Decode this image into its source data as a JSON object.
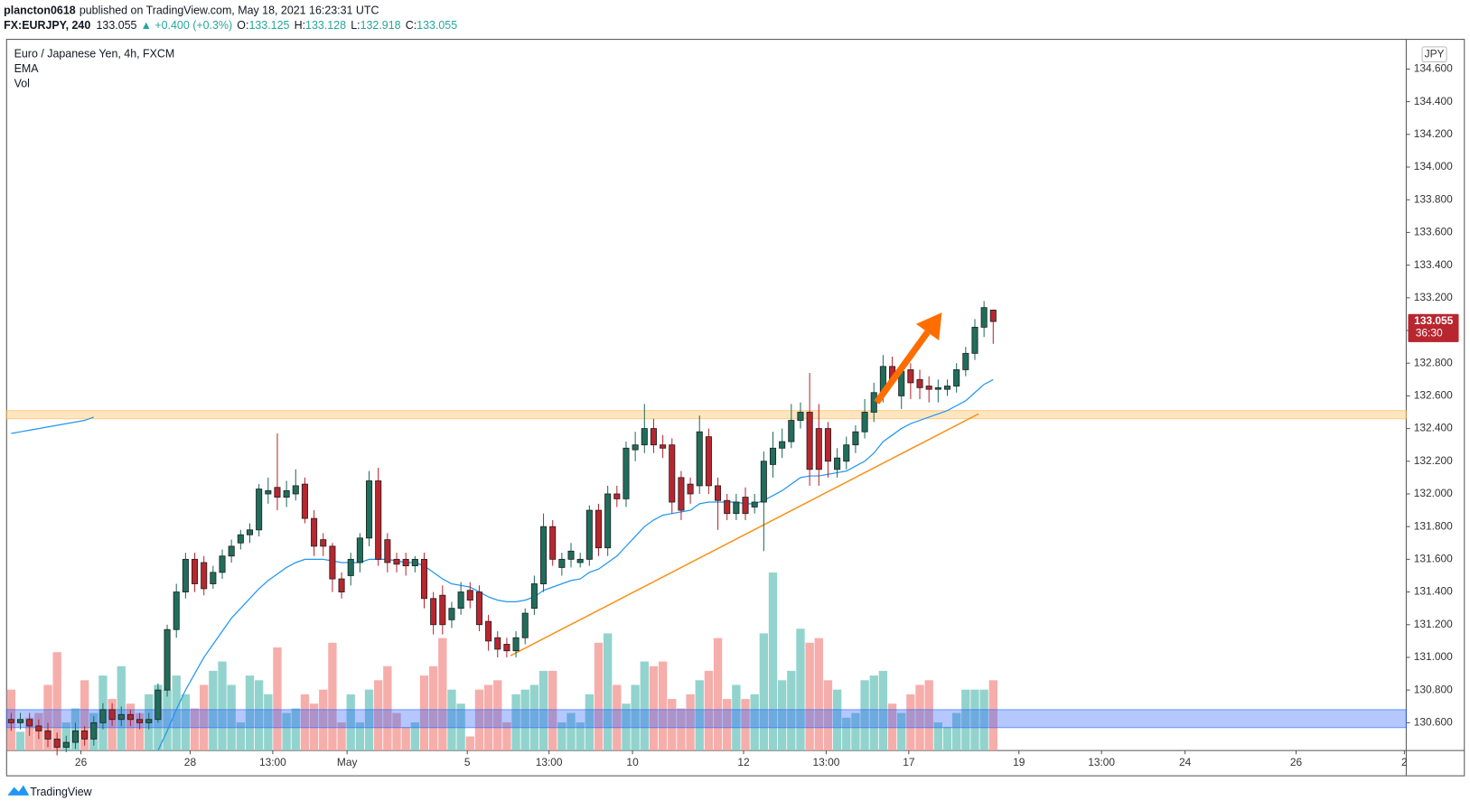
{
  "header": {
    "author": "plancton0618",
    "published": "published on TradingView.com, May 18, 2021 16:23:31 UTC",
    "symbol": "FX:EURJPY, 240",
    "last": "133.055",
    "change": "▲ +0.400 (+0.3%)",
    "ohlc": [
      {
        "label": "O:",
        "value": "133.125"
      },
      {
        "label": "H:",
        "value": "133.128"
      },
      {
        "label": "L:",
        "value": "132.918"
      },
      {
        "label": "C:",
        "value": "133.055"
      }
    ]
  },
  "chart_data": {
    "type": "candlestick",
    "title": "Euro / Japanese Yen, 4h, FXCM",
    "currency": "JPY",
    "up_color": "#1f6e5c",
    "down_color": "#b8262f",
    "volume_up_color": "#80cbc4",
    "volume_down_color": "#f4a09c",
    "open": [
      130.62,
      130.6,
      130.62,
      130.58,
      130.55,
      130.5,
      130.45,
      130.48,
      130.55,
      130.5,
      130.6,
      130.68,
      130.62,
      130.65,
      130.62,
      130.6,
      130.62,
      130.8,
      131.17,
      131.4,
      131.6,
      131.58,
      131.45,
      131.52,
      131.62,
      131.7,
      131.75,
      131.78,
      132.0,
      132.04,
      131.98,
      132.0,
      132.06,
      131.85,
      131.72,
      131.68,
      131.48,
      131.5,
      131.58,
      131.73,
      132.08,
      131.72,
      131.6,
      131.6,
      131.56,
      131.6,
      131.36,
      131.38,
      131.23,
      131.3,
      131.41,
      131.4,
      131.22,
      131.12,
      131.08,
      131.04,
      131.12,
      131.3,
      131.45,
      131.8,
      131.55,
      131.6,
      131.58,
      131.6,
      131.9,
      131.67,
      132.0,
      131.97,
      132.27,
      132.3,
      132.4,
      132.3,
      132.3,
      132.1,
      132.06,
      132.05,
      132.35,
      132.05,
      131.96,
      131.88,
      131.98,
      131.92,
      131.95,
      132.18,
      132.28,
      132.32,
      132.45,
      132.5,
      132.4,
      132.4,
      132.15,
      132.2,
      132.3,
      132.38,
      132.5,
      132.62,
      132.78,
      132.6,
      132.76,
      132.7,
      132.66,
      132.64,
      132.64,
      132.66,
      132.76,
      132.86,
      133.02,
      133.125
    ],
    "high": [
      130.66,
      130.66,
      130.66,
      130.62,
      130.6,
      130.54,
      130.52,
      130.6,
      130.58,
      130.64,
      130.72,
      130.72,
      130.7,
      130.68,
      130.66,
      130.66,
      130.84,
      131.2,
      131.45,
      131.64,
      131.64,
      131.62,
      131.56,
      131.66,
      131.72,
      131.78,
      131.82,
      132.06,
      132.1,
      132.37,
      132.08,
      132.15,
      132.1,
      131.9,
      131.76,
      131.7,
      131.52,
      131.64,
      131.76,
      132.14,
      132.16,
      131.76,
      131.64,
      131.64,
      131.62,
      131.64,
      131.4,
      131.44,
      131.34,
      131.46,
      131.46,
      131.44,
      131.26,
      131.16,
      131.12,
      131.16,
      131.3,
      131.5,
      131.88,
      131.84,
      131.64,
      131.7,
      131.64,
      131.93,
      131.94,
      132.05,
      132.05,
      132.32,
      132.38,
      132.55,
      132.46,
      132.36,
      132.34,
      132.14,
      132.1,
      132.48,
      132.4,
      132.1,
      132.0,
      132.0,
      132.04,
      132.0,
      132.26,
      132.38,
      132.4,
      132.55,
      132.56,
      132.74,
      132.55,
      132.44,
      132.28,
      132.35,
      132.42,
      132.58,
      132.68,
      132.85,
      132.84,
      132.8,
      132.8,
      132.76,
      132.72,
      132.7,
      132.7,
      132.8,
      132.9,
      133.07,
      133.18,
      133.128
    ],
    "low": [
      130.55,
      130.56,
      130.52,
      130.5,
      130.45,
      130.4,
      130.42,
      130.44,
      130.46,
      130.46,
      130.56,
      130.58,
      130.58,
      130.58,
      130.56,
      130.56,
      130.6,
      130.76,
      131.12,
      131.36,
      131.4,
      131.38,
      131.42,
      131.48,
      131.58,
      131.66,
      131.7,
      131.74,
      131.94,
      131.9,
      131.92,
      131.96,
      131.82,
      131.62,
      131.62,
      131.4,
      131.36,
      131.44,
      131.52,
      131.68,
      131.56,
      131.52,
      131.52,
      131.5,
      131.52,
      131.3,
      131.14,
      131.14,
      131.18,
      131.26,
      131.3,
      131.16,
      131.04,
      131.0,
      131.0,
      131.0,
      131.08,
      131.26,
      131.4,
      131.56,
      131.5,
      131.55,
      131.55,
      131.56,
      131.62,
      131.62,
      131.92,
      131.92,
      132.2,
      132.25,
      132.25,
      132.22,
      131.88,
      131.84,
      131.94,
      132.0,
      132.0,
      131.78,
      131.84,
      131.84,
      131.84,
      131.88,
      131.65,
      132.1,
      132.22,
      132.28,
      132.4,
      132.05,
      132.05,
      132.1,
      132.1,
      132.15,
      132.25,
      132.34,
      132.44,
      132.56,
      132.66,
      132.52,
      132.58,
      132.58,
      132.56,
      132.56,
      132.6,
      132.62,
      132.72,
      132.82,
      132.96,
      132.918
    ],
    "close": [
      130.6,
      130.62,
      130.58,
      130.55,
      130.5,
      130.45,
      130.48,
      130.55,
      130.5,
      130.6,
      130.68,
      130.62,
      130.65,
      130.62,
      130.6,
      130.62,
      130.8,
      131.17,
      131.4,
      131.6,
      131.45,
      131.42,
      131.52,
      131.62,
      131.68,
      131.75,
      131.78,
      132.03,
      132.02,
      131.98,
      132.02,
      132.05,
      131.85,
      131.68,
      131.68,
      131.48,
      131.4,
      131.6,
      131.73,
      132.08,
      131.6,
      131.58,
      131.57,
      131.56,
      131.6,
      131.36,
      131.2,
      131.2,
      131.3,
      131.4,
      131.35,
      131.2,
      131.1,
      131.05,
      131.04,
      131.12,
      131.27,
      131.45,
      131.8,
      131.6,
      131.6,
      131.65,
      131.6,
      131.9,
      131.67,
      132.0,
      131.97,
      132.28,
      132.3,
      132.4,
      132.3,
      132.28,
      131.95,
      131.9,
      132.0,
      132.38,
      132.05,
      131.96,
      131.88,
      131.95,
      131.88,
      131.95,
      132.2,
      132.28,
      132.32,
      132.45,
      132.5,
      132.15,
      132.15,
      132.2,
      132.22,
      132.3,
      132.38,
      132.5,
      132.62,
      132.78,
      132.7,
      132.75,
      132.68,
      132.65,
      132.64,
      132.65,
      132.66,
      132.76,
      132.86,
      133.02,
      133.14,
      133.055
    ],
    "series": [
      {
        "name": "EMA",
        "color": "#2196f3",
        "values": [
          132.37,
          132.38,
          132.39,
          132.4,
          132.41,
          132.42,
          132.43,
          132.44,
          132.45,
          132.47,
          null,
          null,
          null,
          null,
          null,
          null,
          130.43,
          130.55,
          130.68,
          130.8,
          130.9,
          131.0,
          131.08,
          131.16,
          131.24,
          131.3,
          131.36,
          131.42,
          131.47,
          131.51,
          131.55,
          131.58,
          131.6,
          131.6,
          131.6,
          131.59,
          131.58,
          131.58,
          131.58,
          131.6,
          131.6,
          131.6,
          131.59,
          131.58,
          131.58,
          131.56,
          131.52,
          131.48,
          131.45,
          131.44,
          131.43,
          131.4,
          131.37,
          131.35,
          131.34,
          131.34,
          131.35,
          131.37,
          131.41,
          131.43,
          131.45,
          131.47,
          131.48,
          131.52,
          131.54,
          131.58,
          131.62,
          131.68,
          131.74,
          131.8,
          131.84,
          131.87,
          131.88,
          131.89,
          131.9,
          131.94,
          131.95,
          131.95,
          131.95,
          131.95,
          131.94,
          131.94,
          131.96,
          131.99,
          132.02,
          132.06,
          132.1,
          132.11,
          132.11,
          132.12,
          132.13,
          132.14,
          132.17,
          132.2,
          132.25,
          132.32,
          132.36,
          132.4,
          132.43,
          132.45,
          132.47,
          132.49,
          132.51,
          132.54,
          132.57,
          132.62,
          132.67,
          132.7
        ]
      },
      {
        "name": "Vol",
        "values": [
          65,
          20,
          35,
          40,
          70,
          105,
          30,
          45,
          75,
          40,
          80,
          55,
          90,
          50,
          40,
          60,
          70,
          65,
          80,
          60,
          45,
          70,
          85,
          95,
          70,
          30,
          80,
          75,
          60,
          110,
          40,
          45,
          60,
          50,
          65,
          115,
          30,
          60,
          30,
          65,
          75,
          90,
          40,
          25,
          30,
          80,
          90,
          120,
          65,
          50,
          15,
          65,
          70,
          75,
          30,
          60,
          65,
          70,
          85,
          85,
          30,
          40,
          30,
          60,
          115,
          125,
          70,
          50,
          70,
          95,
          90,
          95,
          55,
          45,
          60,
          75,
          85,
          120,
          55,
          70,
          55,
          60,
          125,
          190,
          75,
          85,
          130,
          115,
          120,
          75,
          65,
          35,
          40,
          75,
          80,
          85,
          50,
          40,
          60,
          70,
          75,
          30,
          25,
          40,
          65,
          65,
          65,
          75
        ]
      }
    ],
    "volume_lim": [
      0,
      757
    ],
    "ylim": [
      130.43,
      134.77
    ],
    "yticks": [
      {
        "value": 130.6,
        "label": "130.600"
      },
      {
        "value": 130.8,
        "label": "130.800"
      },
      {
        "value": 131.0,
        "label": "131.000"
      },
      {
        "value": 131.2,
        "label": "131.200"
      },
      {
        "value": 131.4,
        "label": "131.400"
      },
      {
        "value": 131.6,
        "label": "131.600"
      },
      {
        "value": 131.8,
        "label": "131.800"
      },
      {
        "value": 132.0,
        "label": "132.000"
      },
      {
        "value": 132.2,
        "label": "132.200"
      },
      {
        "value": 132.4,
        "label": "132.400"
      },
      {
        "value": 132.6,
        "label": "132.600"
      },
      {
        "value": 132.8,
        "label": "132.800"
      },
      {
        "value": 133.0,
        "label": "133.000"
      },
      {
        "value": 133.2,
        "label": "133.200"
      },
      {
        "value": 133.4,
        "label": "133.400"
      },
      {
        "value": 133.6,
        "label": "133.600"
      },
      {
        "value": 133.8,
        "label": "133.800"
      },
      {
        "value": 134.0,
        "label": "134.000"
      },
      {
        "value": 134.2,
        "label": "134.200"
      },
      {
        "value": 134.4,
        "label": "134.400"
      },
      {
        "value": 134.6,
        "label": "134.600"
      }
    ],
    "xlim": [
      -0.5,
      152
    ],
    "xticks": [
      {
        "value": 7.6,
        "label": "26"
      },
      {
        "value": 19.5,
        "label": "28"
      },
      {
        "value": 28.5,
        "label": "13:00"
      },
      {
        "value": 36.6,
        "label": "May"
      },
      {
        "value": 49.7,
        "label": "5"
      },
      {
        "value": 58.6,
        "label": "13:00"
      },
      {
        "value": 67.7,
        "label": "10"
      },
      {
        "value": 79.8,
        "label": "12"
      },
      {
        "value": 88.8,
        "label": "13:00"
      },
      {
        "value": 97.8,
        "label": "17"
      },
      {
        "value": 109.8,
        "label": "19"
      },
      {
        "value": 118.8,
        "label": "13:00"
      },
      {
        "value": 127.9,
        "label": "24"
      },
      {
        "value": 140,
        "label": "26"
      },
      {
        "value": 151.8,
        "label": "2"
      }
    ],
    "grid": false,
    "last_price": 133.055,
    "countdown": "36:30",
    "zones": [
      {
        "ylim": [
          132.46,
          132.51
        ],
        "color": "#ffb74d"
      },
      {
        "ylim": [
          130.57,
          130.68
        ],
        "color": "#2962ff"
      }
    ],
    "trendline": {
      "x": [
        54.4,
        105.4
      ],
      "y": [
        131.01,
        132.49
      ],
      "color": "#f7931e"
    },
    "arrow": {
      "x": [
        94.3,
        101.4
      ],
      "y": [
        132.56,
        133.11
      ],
      "color": "#ff6d00"
    }
  },
  "footer": {
    "brand": "TradingView"
  }
}
